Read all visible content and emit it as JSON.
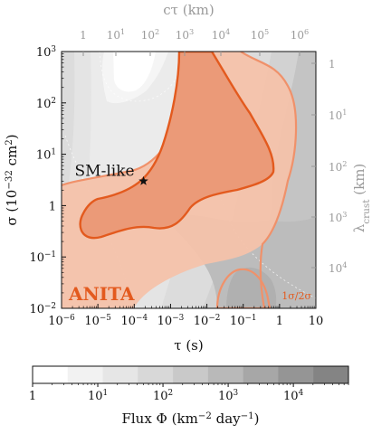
{
  "chart_data": {
    "type": "contour",
    "x_axis": {
      "label": "τ (s)",
      "scale": "log",
      "range": [
        1e-06,
        10
      ],
      "ticks": [
        {
          "v": 1e-06,
          "label": "10^-6"
        },
        {
          "v": 1e-05,
          "label": "10^-5"
        },
        {
          "v": 0.0001,
          "label": "10^-4"
        },
        {
          "v": 0.001,
          "label": "10^-3"
        },
        {
          "v": 0.01,
          "label": "10^-2"
        },
        {
          "v": 0.1,
          "label": "10^-1"
        },
        {
          "v": 1,
          "label": "1"
        },
        {
          "v": 10,
          "label": "10"
        }
      ]
    },
    "y_axis": {
      "label": "σ (10^-32 cm^2)",
      "scale": "log",
      "range": [
        0.01,
        1000
      ],
      "ticks": [
        {
          "v": 0.01,
          "label": "10^-2"
        },
        {
          "v": 0.1,
          "label": "10^-1"
        },
        {
          "v": 1,
          "label": "1"
        },
        {
          "v": 10,
          "label": "10^1"
        },
        {
          "v": 100,
          "label": "10^2"
        },
        {
          "v": 1000,
          "label": "10^3"
        }
      ]
    },
    "top_axis": {
      "label": "cτ (km)",
      "scale": "log",
      "ticks": [
        {
          "v": 1,
          "label": "1"
        },
        {
          "v": 10,
          "label": "10^1"
        },
        {
          "v": 100,
          "label": "10^2"
        },
        {
          "v": 1000,
          "label": "10^3"
        },
        {
          "v": 10000,
          "label": "10^4"
        },
        {
          "v": 100000,
          "label": "10^5"
        },
        {
          "v": 1000000,
          "label": "10^6"
        }
      ]
    },
    "right_axis": {
      "label": "λcrust (km)",
      "scale": "log",
      "ticks": [
        {
          "v": 1,
          "label": "1"
        },
        {
          "v": 10,
          "label": "10^1"
        },
        {
          "v": 100,
          "label": "10^2"
        },
        {
          "v": 1000,
          "label": "10^3"
        },
        {
          "v": 10000,
          "label": "10^4"
        }
      ]
    },
    "colorbar": {
      "label": "Flux Φ (km^-2 day^-1)",
      "scale": "log",
      "range": [
        1,
        70000
      ],
      "ticks": [
        {
          "v": 1,
          "label": "1"
        },
        {
          "v": 10,
          "label": "10^1"
        },
        {
          "v": 100,
          "label": "10^2"
        },
        {
          "v": 1000,
          "label": "10^3"
        },
        {
          "v": 10000,
          "label": "10^4"
        }
      ],
      "colors": [
        "#ffffff",
        "#f2f2f2",
        "#e6e6e6",
        "#d8d8d8",
        "#c9c9c9",
        "#b9b9b9",
        "#a7a7a7",
        "#959595",
        "#848484"
      ]
    },
    "regions": [
      {
        "name": "1σ",
        "color": "#e35a1e",
        "fill": "#eb9a78"
      },
      {
        "name": "2σ",
        "color": "#f0916a",
        "fill": "#f4c2aa"
      }
    ],
    "benchmark": {
      "label": "SM-like",
      "tau": 0.00018,
      "sigma": 3.0
    },
    "annotations": {
      "experiment": "ANITA",
      "legend": "1σ/2σ"
    }
  }
}
